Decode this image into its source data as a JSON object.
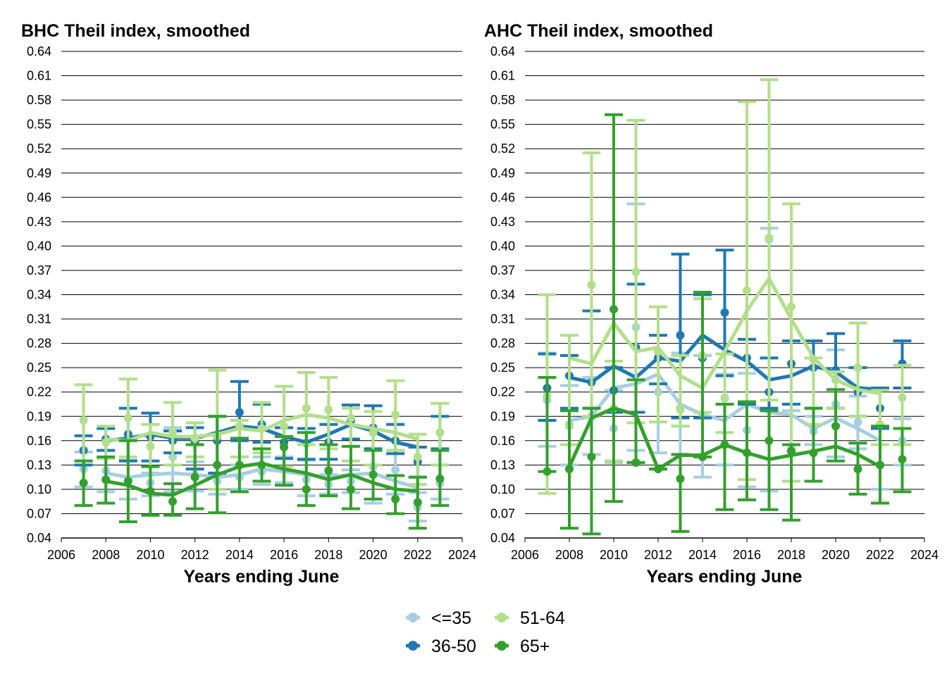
{
  "chart_data": [
    {
      "type": "line",
      "title": "BHC Theil index, smoothed",
      "xlabel": "Years ending June",
      "ylabel": "",
      "xlim": [
        2006,
        2024
      ],
      "ylim": [
        0.04,
        0.64
      ],
      "yticks": [
        "0.04",
        "0.07",
        "0.10",
        "0.13",
        "0.16",
        "0.19",
        "0.22",
        "0.25",
        "0.28",
        "0.31",
        "0.34",
        "0.37",
        "0.40",
        "0.43",
        "0.46",
        "0.49",
        "0.52",
        "0.55",
        "0.58",
        "0.61",
        "0.64"
      ],
      "xticks": [
        "2006",
        "2008",
        "2010",
        "2012",
        "2014",
        "2016",
        "2018",
        "2020",
        "2022",
        "2024"
      ],
      "grid": "horizontal",
      "series": [
        {
          "name": "<=35",
          "color": "#a6cee3",
          "x": [
            2007,
            2008,
            2009,
            2010,
            2011,
            2012,
            2013,
            2014,
            2015,
            2016,
            2017,
            2018,
            2019,
            2020,
            2021,
            2022,
            2023
          ],
          "line": [
            null,
            0.12,
            0.115,
            0.118,
            0.12,
            0.118,
            0.115,
            0.118,
            0.125,
            0.122,
            0.118,
            0.115,
            0.118,
            0.12,
            0.11,
            0.102,
            null
          ],
          "point": [
            0.125,
            0.123,
            0.112,
            0.108,
            0.14,
            0.118,
            0.11,
            0.115,
            0.122,
            0.125,
            0.112,
            0.106,
            0.11,
            0.128,
            0.124,
            0.078,
            0.108
          ],
          "low": [
            0.103,
            0.097,
            0.088,
            0.092,
            0.097,
            0.098,
            0.094,
            0.1,
            0.106,
            0.108,
            0.092,
            0.094,
            0.096,
            0.083,
            0.094,
            0.061,
            0.088
          ],
          "high": [
            0.146,
            0.148,
            0.136,
            0.12,
            0.176,
            0.134,
            0.12,
            0.13,
            0.14,
            0.14,
            0.136,
            0.118,
            0.124,
            0.15,
            0.148,
            0.096,
            0.13
          ]
        },
        {
          "name": "36-50",
          "color": "#1f78b4",
          "x": [
            2007,
            2008,
            2009,
            2010,
            2011,
            2012,
            2013,
            2014,
            2015,
            2016,
            2017,
            2018,
            2019,
            2020,
            2021,
            2022,
            2023
          ],
          "line": [
            null,
            0.16,
            0.163,
            0.168,
            0.163,
            0.163,
            0.17,
            0.178,
            0.175,
            0.165,
            0.158,
            0.168,
            0.18,
            0.172,
            0.158,
            0.152,
            null
          ],
          "point": [
            0.148,
            0.162,
            0.168,
            0.165,
            0.16,
            0.158,
            0.16,
            0.195,
            0.18,
            0.158,
            0.157,
            0.158,
            0.185,
            0.176,
            0.16,
            0.134,
            0.17
          ],
          "low": [
            0.13,
            0.148,
            0.135,
            0.135,
            0.145,
            0.125,
            0.12,
            0.16,
            0.158,
            0.138,
            0.137,
            0.137,
            0.162,
            0.15,
            0.144,
            0.115,
            0.15
          ],
          "high": [
            0.166,
            0.175,
            0.2,
            0.194,
            0.172,
            0.176,
            0.19,
            0.233,
            0.205,
            0.176,
            0.175,
            0.18,
            0.204,
            0.203,
            0.18,
            0.152,
            0.19
          ]
        },
        {
          "name": "51-64",
          "color": "#b2df8a",
          "x": [
            2007,
            2008,
            2009,
            2010,
            2011,
            2012,
            2013,
            2014,
            2015,
            2016,
            2017,
            2018,
            2019,
            2020,
            2021,
            2022,
            2023
          ],
          "line": [
            null,
            0.162,
            0.16,
            0.17,
            0.165,
            0.165,
            0.168,
            0.175,
            0.172,
            0.185,
            0.192,
            0.188,
            0.18,
            0.175,
            0.17,
            0.162,
            null
          ],
          "point": [
            0.185,
            0.158,
            0.188,
            0.153,
            0.17,
            0.163,
            0.165,
            0.178,
            0.175,
            0.178,
            0.2,
            0.198,
            0.188,
            0.17,
            0.192,
            0.14,
            0.17
          ],
          "low": [
            0.135,
            0.138,
            0.14,
            0.128,
            0.13,
            0.14,
            0.1,
            0.14,
            0.145,
            0.128,
            0.155,
            0.15,
            0.135,
            0.13,
            0.148,
            0.106,
            0.13
          ],
          "high": [
            0.229,
            0.178,
            0.236,
            0.18,
            0.207,
            0.182,
            0.247,
            0.185,
            0.207,
            0.227,
            0.244,
            0.238,
            0.2,
            0.196,
            0.234,
            0.168,
            0.206
          ]
        },
        {
          "name": "65+",
          "color": "#33a02c",
          "x": [
            2007,
            2008,
            2009,
            2010,
            2011,
            2012,
            2013,
            2014,
            2015,
            2016,
            2017,
            2018,
            2019,
            2020,
            2021,
            2022,
            2023
          ],
          "line": [
            null,
            0.11,
            0.105,
            0.095,
            0.093,
            0.105,
            0.118,
            0.128,
            0.132,
            0.125,
            0.12,
            0.112,
            0.118,
            0.108,
            0.1,
            0.098,
            null
          ],
          "point": [
            0.108,
            0.112,
            0.11,
            0.098,
            0.085,
            0.115,
            0.13,
            0.13,
            0.13,
            0.152,
            0.1,
            0.123,
            0.1,
            0.118,
            0.088,
            0.084,
            0.113
          ],
          "low": [
            0.08,
            0.083,
            0.06,
            0.068,
            0.068,
            0.076,
            0.071,
            0.097,
            0.11,
            0.105,
            0.08,
            0.092,
            0.076,
            0.088,
            0.07,
            0.052,
            0.08
          ],
          "high": [
            0.135,
            0.14,
            0.16,
            0.128,
            0.107,
            0.155,
            0.19,
            0.163,
            0.15,
            0.165,
            0.17,
            0.155,
            0.153,
            0.148,
            0.117,
            0.115,
            0.148
          ]
        }
      ]
    },
    {
      "type": "line",
      "title": "AHC Theil index, smoothed",
      "xlabel": "Years ending June",
      "ylabel": "",
      "xlim": [
        2006,
        2024
      ],
      "ylim": [
        0.04,
        0.64
      ],
      "yticks": [
        "0.04",
        "0.07",
        "0.10",
        "0.13",
        "0.16",
        "0.19",
        "0.22",
        "0.25",
        "0.28",
        "0.31",
        "0.34",
        "0.37",
        "0.40",
        "0.43",
        "0.46",
        "0.49",
        "0.52",
        "0.55",
        "0.58",
        "0.61",
        "0.64"
      ],
      "xticks": [
        "2006",
        "2008",
        "2010",
        "2012",
        "2014",
        "2016",
        "2018",
        "2020",
        "2022",
        "2024"
      ],
      "grid": "horizontal",
      "series": [
        {
          "name": "<=35",
          "color": "#a6cee3",
          "x": [
            2007,
            2008,
            2009,
            2010,
            2011,
            2012,
            2013,
            2014,
            2015,
            2016,
            2017,
            2018,
            2019,
            2020,
            2021,
            2022,
            2023
          ],
          "line": [
            null,
            0.185,
            0.19,
            0.225,
            0.23,
            0.242,
            0.205,
            0.192,
            0.185,
            0.205,
            0.195,
            0.192,
            0.175,
            0.188,
            0.175,
            0.16,
            null
          ],
          "point": [
            0.21,
            0.18,
            0.19,
            0.175,
            0.3,
            0.22,
            0.2,
            0.192,
            0.213,
            0.173,
            0.408,
            0.15,
            0.172,
            0.205,
            0.183,
            0.13,
            0.16
          ],
          "low": [
            0.153,
            0.13,
            0.143,
            0.133,
            0.148,
            0.145,
            0.143,
            0.115,
            0.13,
            0.103,
            0.098,
            0.11,
            0.155,
            0.14,
            0.15,
            0.1,
            0.13
          ],
          "high": [
            0.268,
            0.228,
            0.238,
            0.222,
            0.452,
            0.29,
            0.268,
            0.265,
            0.242,
            0.243,
            0.422,
            0.197,
            0.19,
            0.272,
            0.215,
            0.155,
            0.187
          ]
        },
        {
          "name": "36-50",
          "color": "#1f78b4",
          "x": [
            2007,
            2008,
            2009,
            2010,
            2011,
            2012,
            2013,
            2014,
            2015,
            2016,
            2017,
            2018,
            2019,
            2020,
            2021,
            2022,
            2023
          ],
          "line": [
            null,
            0.238,
            0.232,
            0.252,
            0.238,
            0.262,
            0.258,
            0.29,
            0.272,
            0.258,
            0.235,
            0.24,
            0.252,
            0.245,
            0.225,
            0.223,
            null
          ],
          "point": [
            0.225,
            0.24,
            0.232,
            0.222,
            0.275,
            0.262,
            0.29,
            0.262,
            0.318,
            0.262,
            0.22,
            0.255,
            0.25,
            0.247,
            0.22,
            0.2,
            0.255
          ],
          "low": [
            0.185,
            0.2,
            0.2,
            0.195,
            0.195,
            0.23,
            0.188,
            0.188,
            0.24,
            0.205,
            0.2,
            0.205,
            0.2,
            0.2,
            0.19,
            0.175,
            0.225
          ],
          "high": [
            0.267,
            0.265,
            0.32,
            0.25,
            0.353,
            0.29,
            0.39,
            0.34,
            0.395,
            0.285,
            0.262,
            0.283,
            0.283,
            0.292,
            0.25,
            0.225,
            0.283
          ]
        },
        {
          "name": "51-64",
          "color": "#b2df8a",
          "x": [
            2007,
            2008,
            2009,
            2010,
            2011,
            2012,
            2013,
            2014,
            2015,
            2016,
            2017,
            2018,
            2019,
            2020,
            2021,
            2022,
            2023
          ],
          "line": [
            null,
            0.262,
            0.255,
            0.305,
            0.27,
            0.275,
            0.24,
            0.225,
            0.27,
            0.32,
            0.36,
            0.31,
            0.262,
            0.235,
            0.223,
            0.218,
            null
          ],
          "point": [
            0.215,
            0.178,
            0.352,
            0.2,
            0.368,
            0.27,
            0.198,
            0.265,
            0.212,
            0.345,
            0.41,
            0.325,
            0.26,
            0.235,
            0.25,
            0.18,
            0.213
          ],
          "low": [
            0.095,
            0.155,
            0.19,
            0.135,
            0.182,
            0.183,
            0.178,
            0.195,
            0.17,
            0.112,
            0.21,
            0.11,
            0.18,
            0.2,
            0.19,
            0.155,
            0.155
          ],
          "high": [
            0.34,
            0.29,
            0.515,
            0.258,
            0.555,
            0.325,
            0.265,
            0.335,
            0.267,
            0.578,
            0.605,
            0.452,
            0.262,
            0.245,
            0.305,
            0.222,
            0.253
          ]
        },
        {
          "name": "65+",
          "color": "#33a02c",
          "x": [
            2007,
            2008,
            2009,
            2010,
            2011,
            2012,
            2013,
            2014,
            2015,
            2016,
            2017,
            2018,
            2019,
            2020,
            2021,
            2022,
            2023
          ],
          "line": [
            null,
            0.128,
            0.188,
            0.2,
            0.192,
            0.125,
            0.142,
            0.142,
            0.155,
            0.145,
            0.137,
            0.142,
            0.147,
            0.153,
            0.143,
            0.128,
            null
          ],
          "point": [
            0.122,
            0.125,
            0.14,
            0.322,
            0.133,
            0.125,
            0.113,
            0.14,
            0.155,
            0.145,
            0.16,
            0.147,
            0.145,
            0.178,
            0.125,
            0.13,
            0.137
          ],
          "low": [
            0.122,
            0.052,
            0.045,
            0.085,
            0.133,
            0.125,
            0.048,
            0.14,
            0.075,
            0.087,
            0.075,
            0.062,
            0.11,
            0.135,
            0.094,
            0.083,
            0.097
          ],
          "high": [
            0.238,
            0.197,
            0.2,
            0.562,
            0.235,
            0.125,
            0.143,
            0.343,
            0.205,
            0.208,
            0.197,
            0.155,
            0.2,
            0.223,
            0.157,
            0.178,
            0.175
          ]
        }
      ]
    }
  ],
  "legend": {
    "placement": "bottom-center",
    "items": [
      {
        "label": "<=35",
        "color": "#a6cee3"
      },
      {
        "label": "51-64",
        "color": "#b2df8a"
      },
      {
        "label": "36-50",
        "color": "#1f78b4"
      },
      {
        "label": "65+",
        "color": "#33a02c"
      }
    ]
  }
}
